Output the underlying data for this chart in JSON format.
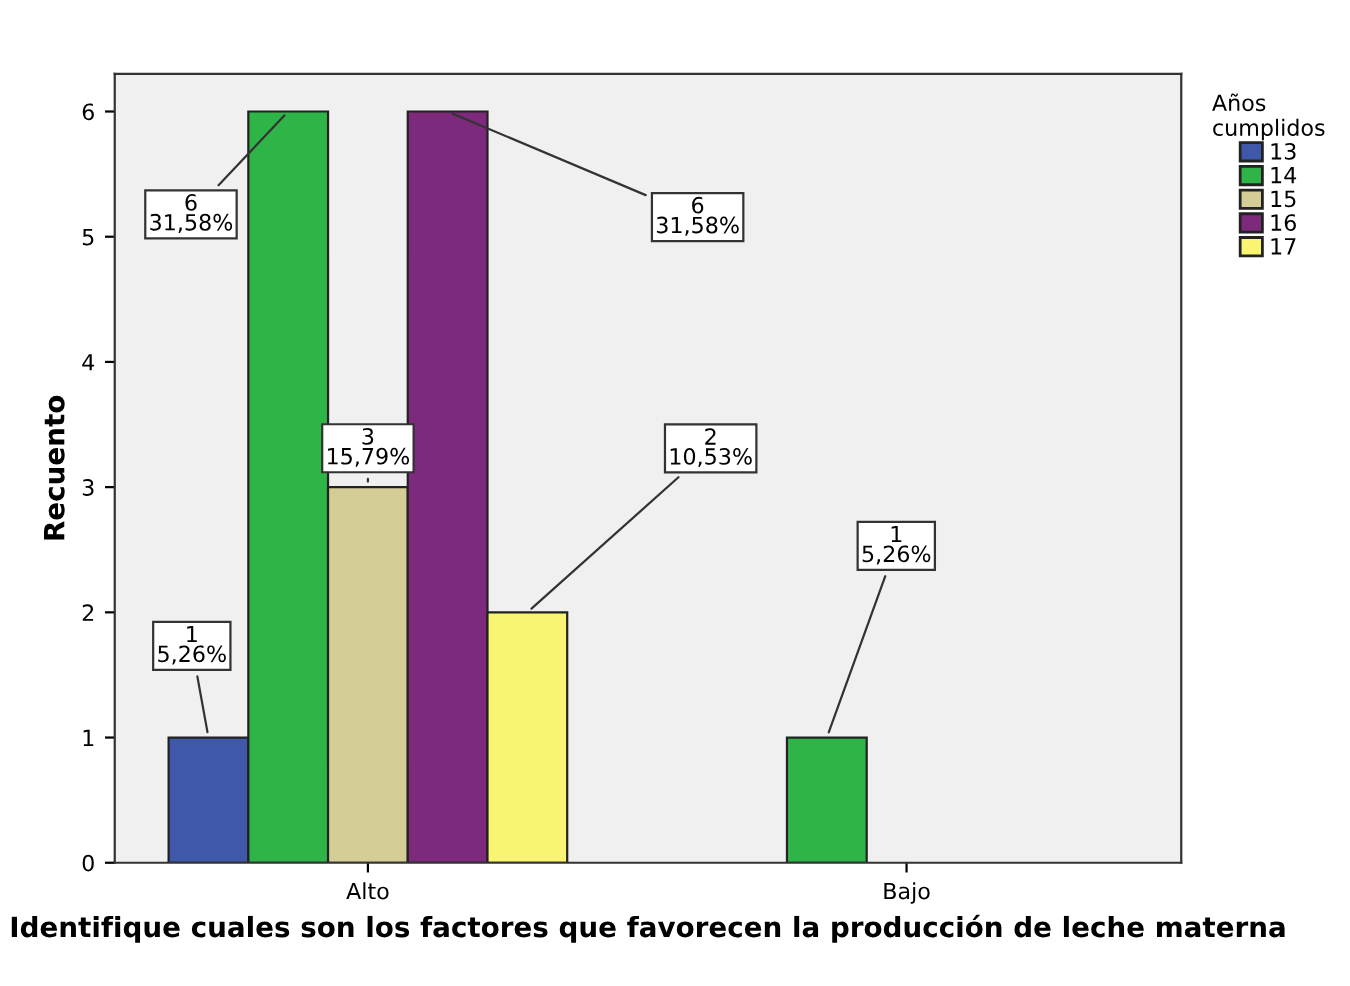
{
  "chart_data": {
    "type": "bar",
    "xlabel": "Identifique cuales son los factores que favorecen la producción de leche materna",
    "ylabel": "Recuento",
    "legend_title": "Años\ncumplidos",
    "categories": [
      "Alto",
      "Bajo"
    ],
    "ylim": [
      0,
      6.3
    ],
    "yticks": [
      0,
      1,
      2,
      3,
      4,
      5,
      6
    ],
    "legend": "right",
    "grid": false,
    "series": [
      {
        "name": "13",
        "color": "#3f58aa",
        "values": [
          1,
          null
        ],
        "value_labels": [
          "1\n5,26%",
          null
        ]
      },
      {
        "name": "14",
        "color": "#2fb547",
        "values": [
          6,
          1
        ],
        "value_labels": [
          "6\n31,58%",
          "1\n5,26%"
        ]
      },
      {
        "name": "15",
        "color": "#d4ce96",
        "values": [
          3,
          null
        ],
        "value_labels": [
          "3\n15,79%",
          null
        ]
      },
      {
        "name": "16",
        "color": "#7d2a7d",
        "values": [
          6,
          null
        ],
        "value_labels": [
          "6\n31,58%",
          null
        ]
      },
      {
        "name": "17",
        "color": "#f9f573",
        "values": [
          2,
          null
        ],
        "value_labels": [
          "2\n10,53%",
          null
        ]
      }
    ]
  }
}
